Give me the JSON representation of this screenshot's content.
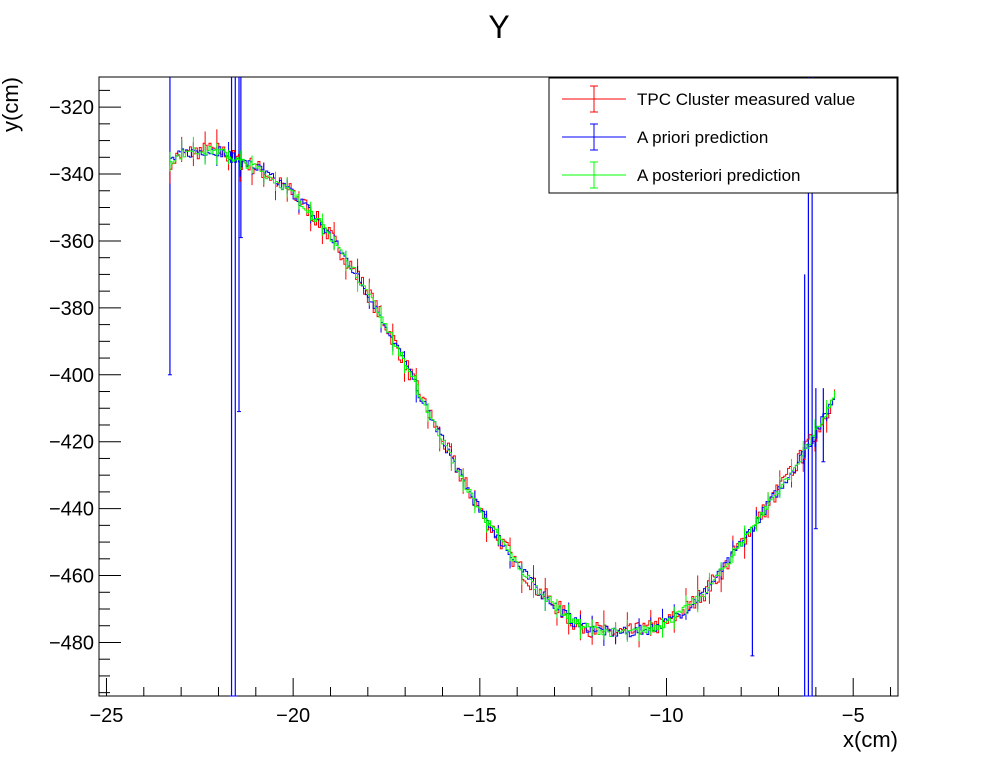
{
  "chart_data": {
    "type": "line",
    "title": "Y",
    "xlabel": "x(cm)",
    "ylabel": "y(cm)",
    "xlim": [
      -25.2,
      -3.8
    ],
    "ylim": [
      -496,
      -311
    ],
    "x_ticks": [
      -25,
      -20,
      -15,
      -10,
      -5
    ],
    "y_ticks": [
      -320,
      -340,
      -360,
      -380,
      -400,
      -420,
      -440,
      -460,
      -480
    ],
    "grid": false,
    "legend_position": "top-right",
    "legend": [
      {
        "label": "TPC Cluster measured value",
        "color": "#ff0000"
      },
      {
        "label": "A priori prediction",
        "color": "#0000ff"
      },
      {
        "label": "A posteriori prediction",
        "color": "#00ff00"
      }
    ],
    "series": [
      {
        "name": "TPC Cluster measured value",
        "color": "#ff0000",
        "x": [
          -23.3,
          -23.0,
          -22.5,
          -22.0,
          -21.5,
          -21.0,
          -20.5,
          -20.0,
          -19.5,
          -19.0,
          -18.5,
          -18.0,
          -17.5,
          -17.0,
          -16.5,
          -16.0,
          -15.5,
          -15.0,
          -14.5,
          -14.0,
          -13.5,
          -13.0,
          -12.5,
          -12.0,
          -11.5,
          -11.0,
          -10.5,
          -10.0,
          -9.5,
          -9.0,
          -8.5,
          -8.0,
          -7.5,
          -7.0,
          -6.5,
          -6.0,
          -5.5
        ],
        "y": [
          -336,
          -334,
          -333,
          -333,
          -336,
          -338,
          -342,
          -346,
          -352,
          -359,
          -367,
          -376,
          -386,
          -397,
          -409,
          -420,
          -431,
          -441,
          -449,
          -457,
          -464,
          -469,
          -474,
          -476,
          -477,
          -477,
          -476,
          -474,
          -470,
          -465,
          -458,
          -450,
          -442,
          -434,
          -426,
          -417,
          -406
        ]
      },
      {
        "name": "A priori prediction",
        "color": "#0000ff",
        "x": [
          -23.3,
          -23.0,
          -22.5,
          -22.0,
          -21.5,
          -21.0,
          -20.5,
          -20.0,
          -19.5,
          -19.0,
          -18.5,
          -18.0,
          -17.5,
          -17.0,
          -16.5,
          -16.0,
          -15.5,
          -15.0,
          -14.5,
          -14.0,
          -13.5,
          -13.0,
          -12.5,
          -12.0,
          -11.5,
          -11.0,
          -10.5,
          -10.0,
          -9.5,
          -9.0,
          -8.5,
          -8.0,
          -7.5,
          -7.0,
          -6.5,
          -6.0,
          -5.5
        ],
        "y": [
          -336,
          -334,
          -333,
          -333,
          -336,
          -338,
          -342,
          -346,
          -352,
          -359,
          -367,
          -376,
          -386,
          -397,
          -409,
          -420,
          -431,
          -441,
          -449,
          -457,
          -464,
          -469,
          -474,
          -476,
          -477,
          -477,
          -476,
          -474,
          -470,
          -465,
          -458,
          -450,
          -442,
          -434,
          -426,
          -417,
          -406
        ]
      },
      {
        "name": "A posteriori prediction",
        "color": "#00ff00",
        "x": [
          -23.3,
          -23.0,
          -22.5,
          -22.0,
          -21.5,
          -21.0,
          -20.5,
          -20.0,
          -19.5,
          -19.0,
          -18.5,
          -18.0,
          -17.5,
          -17.0,
          -16.5,
          -16.0,
          -15.5,
          -15.0,
          -14.5,
          -14.0,
          -13.5,
          -13.0,
          -12.5,
          -12.0,
          -11.5,
          -11.0,
          -10.5,
          -10.0,
          -9.5,
          -9.0,
          -8.5,
          -8.0,
          -7.5,
          -7.0,
          -6.5,
          -6.0,
          -5.5
        ],
        "y": [
          -336,
          -334,
          -333,
          -333,
          -336,
          -338,
          -342,
          -346,
          -352,
          -359,
          -367,
          -376,
          -386,
          -397,
          -409,
          -420,
          -431,
          -441,
          -449,
          -457,
          -464,
          -469,
          -474,
          -476,
          -477,
          -477,
          -476,
          -474,
          -470,
          -465,
          -458,
          -450,
          -442,
          -434,
          -426,
          -417,
          -406
        ]
      }
    ],
    "error_spikes": [
      {
        "series": "A priori prediction",
        "x": -23.3,
        "y_low": -400,
        "y_high": -311
      },
      {
        "series": "A priori prediction",
        "x": -21.65,
        "y_low": -496,
        "y_high": -311
      },
      {
        "series": "A priori prediction",
        "x": -21.55,
        "y_low": -496,
        "y_high": -311
      },
      {
        "series": "A priori prediction",
        "x": -21.45,
        "y_low": -411,
        "y_high": -311
      },
      {
        "series": "A priori prediction",
        "x": -21.4,
        "y_low": -359,
        "y_high": -311
      },
      {
        "series": "A priori prediction",
        "x": -7.7,
        "y_low": -484,
        "y_high": -446
      },
      {
        "series": "A priori prediction",
        "x": -6.3,
        "y_low": -496,
        "y_high": -370
      },
      {
        "series": "A priori prediction",
        "x": -6.2,
        "y_low": -496,
        "y_high": -311
      },
      {
        "series": "A priori prediction",
        "x": -6.1,
        "y_low": -496,
        "y_high": -311
      },
      {
        "series": "A priori prediction",
        "x": -6.0,
        "y_low": -446,
        "y_high": -404
      },
      {
        "series": "A priori prediction",
        "x": -5.8,
        "y_low": -426,
        "y_high": -404
      }
    ]
  }
}
